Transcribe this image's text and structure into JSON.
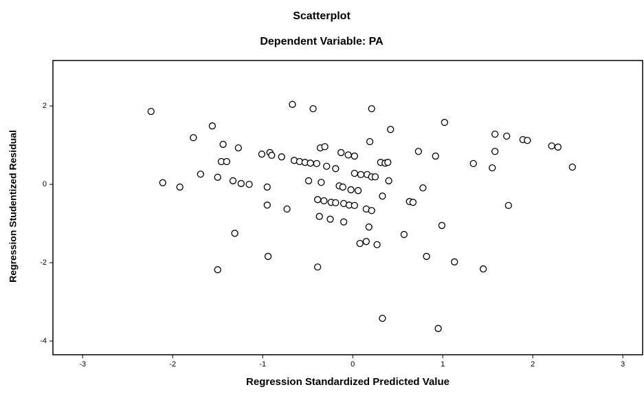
{
  "chart_data": {
    "type": "scatter",
    "title": "Scatterplot",
    "subtitle": "Dependent Variable: PA",
    "x_label": "Regression Standardized Predicted Value",
    "y_label": "Regression Studentized Residual",
    "xlim": [
      -3.33,
      3.22
    ],
    "ylim": [
      -4.35,
      3.16
    ],
    "xticks": [
      -3,
      -2,
      -1,
      0,
      1,
      2,
      3
    ],
    "yticks": [
      -4,
      -2,
      0,
      2
    ],
    "grid": false,
    "color": "#000000",
    "x": [
      -2.24,
      -1.56,
      -1.77,
      -1.44,
      -1.27,
      -1.46,
      -1.4,
      -1.01,
      -0.92,
      -0.9,
      -0.79,
      -0.67,
      -0.44,
      0.21,
      0.42,
      0.19,
      -0.36,
      -0.31,
      -0.13,
      -0.05,
      0.02,
      -0.65,
      -0.59,
      -0.53,
      -0.47,
      -0.4,
      -0.29,
      -0.19,
      0.31,
      0.36,
      0.39,
      0.73,
      0.92,
      1.02,
      1.34,
      1.58,
      1.71,
      1.58,
      1.55,
      1.89,
      1.94,
      2.21,
      2.28,
      2.44,
      -1.69,
      -1.5,
      -1.33,
      -1.24,
      -1.15,
      -2.11,
      -1.92,
      -0.95,
      -0.95,
      -0.73,
      -0.49,
      -0.35,
      -0.15,
      -0.11,
      -0.02,
      0.02,
      0.09,
      0.16,
      0.21,
      0.25,
      0.06,
      0.4,
      -0.39,
      -0.32,
      -0.24,
      -0.19,
      -0.1,
      -0.04,
      0.02,
      0.15,
      0.21,
      0.33,
      0.63,
      0.67,
      0.78,
      1.73,
      -0.37,
      -0.25,
      -0.1,
      0.18,
      -1.31,
      0.99,
      0.57,
      0.08,
      0.15,
      0.27,
      -0.94,
      0.82,
      1.13,
      1.45,
      -1.5,
      -0.39,
      0.33,
      0.95
    ],
    "values": [
      1.86,
      1.49,
      1.19,
      1.02,
      0.93,
      0.58,
      0.58,
      0.77,
      0.81,
      0.74,
      0.7,
      2.04,
      1.93,
      1.93,
      1.4,
      1.09,
      0.93,
      0.96,
      0.81,
      0.75,
      0.72,
      0.61,
      0.58,
      0.56,
      0.54,
      0.53,
      0.46,
      0.4,
      0.56,
      0.54,
      0.56,
      0.84,
      0.72,
      1.58,
      0.53,
      1.28,
      1.23,
      0.84,
      0.42,
      1.14,
      1.12,
      0.98,
      0.95,
      0.44,
      0.26,
      0.18,
      0.09,
      0.02,
      0.0,
      0.04,
      -0.07,
      -0.07,
      -0.53,
      -0.63,
      0.09,
      0.05,
      -0.04,
      -0.07,
      -0.14,
      0.28,
      0.25,
      0.25,
      0.19,
      0.19,
      -0.16,
      0.09,
      -0.39,
      -0.42,
      -0.46,
      -0.47,
      -0.49,
      -0.53,
      -0.54,
      -0.63,
      -0.67,
      -0.3,
      -0.44,
      -0.46,
      -0.09,
      -0.54,
      -0.82,
      -0.89,
      -0.96,
      -1.09,
      -1.25,
      -1.05,
      -1.28,
      -1.51,
      -1.46,
      -1.54,
      -1.84,
      -1.84,
      -1.98,
      -2.16,
      -2.18,
      -2.11,
      -3.42,
      -3.68
    ]
  }
}
